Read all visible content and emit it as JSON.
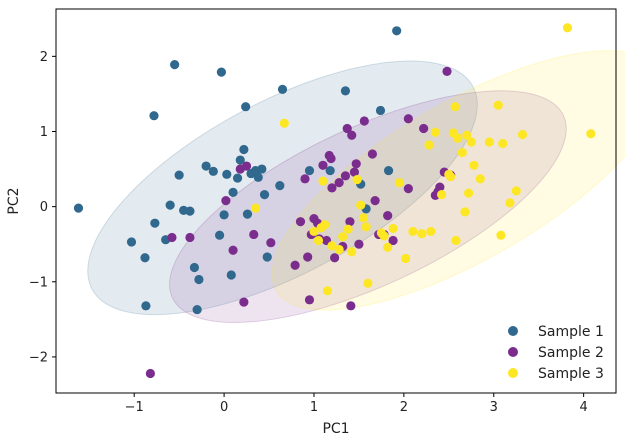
{
  "chart_data": {
    "type": "scatter",
    "xlabel": "PC1",
    "ylabel": "PC2",
    "xlim": [
      -1.87,
      4.36
    ],
    "ylim": [
      -2.48,
      2.63
    ],
    "x_ticks": [
      "−1",
      "0",
      "1",
      "2",
      "3",
      "4"
    ],
    "y_ticks": [
      "−2",
      "−1",
      "0",
      "1",
      "2"
    ],
    "grid": false,
    "legend_position": "lower-right",
    "series": [
      {
        "name": "Sample 1",
        "color": "#31688e",
        "ellipse": {
          "cx": 0.65,
          "cy": 0.25,
          "rx": 2.4,
          "ry": 1.15,
          "angle": 28
        },
        "points": [
          [
            -1.62,
            -0.02
          ],
          [
            -1.03,
            -0.47
          ],
          [
            -0.88,
            -0.68
          ],
          [
            -0.87,
            -1.32
          ],
          [
            -0.78,
            1.21
          ],
          [
            -0.77,
            -0.22
          ],
          [
            -0.65,
            -0.44
          ],
          [
            -0.6,
            0.02
          ],
          [
            -0.55,
            1.89
          ],
          [
            -0.5,
            0.42
          ],
          [
            -0.45,
            -0.05
          ],
          [
            -0.38,
            -0.06
          ],
          [
            -0.33,
            -0.81
          ],
          [
            -0.3,
            -1.37
          ],
          [
            -0.28,
            -0.97
          ],
          [
            -0.2,
            0.54
          ],
          [
            -0.12,
            0.47
          ],
          [
            -0.05,
            -0.38
          ],
          [
            -0.03,
            1.79
          ],
          [
            0.0,
            -0.11
          ],
          [
            0.03,
            0.43
          ],
          [
            0.08,
            -0.91
          ],
          [
            0.1,
            0.19
          ],
          [
            0.15,
            0.38
          ],
          [
            0.18,
            0.62
          ],
          [
            0.22,
            0.76
          ],
          [
            0.24,
            1.33
          ],
          [
            0.26,
            -0.1
          ],
          [
            0.3,
            0.44
          ],
          [
            0.35,
            0.48
          ],
          [
            0.38,
            0.39
          ],
          [
            0.42,
            0.5
          ],
          [
            0.45,
            0.16
          ],
          [
            0.48,
            -0.67
          ],
          [
            0.62,
            0.28
          ],
          [
            0.65,
            1.56
          ],
          [
            0.95,
            0.48
          ],
          [
            1.18,
            0.48
          ],
          [
            1.35,
            1.54
          ],
          [
            1.52,
            0.3
          ],
          [
            1.58,
            -0.03
          ],
          [
            1.74,
            1.28
          ],
          [
            1.83,
            0.48
          ],
          [
            1.92,
            2.34
          ]
        ]
      },
      {
        "name": "Sample 2",
        "color": "#7b2d8e",
        "ellipse": {
          "cx": 1.6,
          "cy": 0.0,
          "rx": 2.4,
          "ry": 1.05,
          "angle": 25
        },
        "points": [
          [
            -0.82,
            -2.22
          ],
          [
            -0.58,
            -0.41
          ],
          [
            -0.38,
            -0.41
          ],
          [
            0.02,
            0.08
          ],
          [
            0.1,
            -0.58
          ],
          [
            0.18,
            0.5
          ],
          [
            0.22,
            -1.27
          ],
          [
            0.25,
            0.54
          ],
          [
            0.33,
            -0.37
          ],
          [
            0.52,
            -0.48
          ],
          [
            0.79,
            -0.78
          ],
          [
            0.85,
            -0.2
          ],
          [
            0.9,
            0.37
          ],
          [
            0.93,
            -0.67
          ],
          [
            0.95,
            -1.24
          ],
          [
            0.97,
            -0.37
          ],
          [
            1.0,
            -0.16
          ],
          [
            1.04,
            -0.22
          ],
          [
            1.06,
            -0.43
          ],
          [
            1.1,
            0.55
          ],
          [
            1.14,
            -0.45
          ],
          [
            1.17,
            0.68
          ],
          [
            1.19,
            0.64
          ],
          [
            1.2,
            0.25
          ],
          [
            1.23,
            -0.68
          ],
          [
            1.28,
            0.32
          ],
          [
            1.32,
            -0.53
          ],
          [
            1.35,
            0.41
          ],
          [
            1.37,
            1.04
          ],
          [
            1.4,
            -0.2
          ],
          [
            1.42,
            0.95
          ],
          [
            1.45,
            0.46
          ],
          [
            1.47,
            0.57
          ],
          [
            1.5,
            -0.5
          ],
          [
            1.56,
            1.14
          ],
          [
            1.65,
            0.7
          ],
          [
            1.68,
            0.08
          ],
          [
            1.72,
            -0.37
          ],
          [
            1.78,
            -0.37
          ],
          [
            1.82,
            -0.12
          ],
          [
            1.88,
            -0.45
          ],
          [
            2.05,
            1.17
          ],
          [
            2.05,
            0.24
          ],
          [
            2.22,
            1.04
          ],
          [
            2.35,
            0.15
          ],
          [
            2.38,
            0.2
          ],
          [
            2.4,
            0.26
          ],
          [
            2.45,
            0.46
          ],
          [
            2.48,
            1.8
          ],
          [
            2.52,
            0.42
          ],
          [
            1.41,
            -1.32
          ]
        ]
      },
      {
        "name": "Sample 3",
        "color": "#fde725",
        "ellipse": {
          "cx": 2.7,
          "cy": 0.35,
          "rx": 2.45,
          "ry": 1.05,
          "angle": 30
        },
        "points": [
          [
            0.35,
            -0.02
          ],
          [
            0.67,
            1.11
          ],
          [
            1.0,
            -0.33
          ],
          [
            1.05,
            -0.45
          ],
          [
            1.08,
            -0.28
          ],
          [
            1.1,
            0.34
          ],
          [
            1.12,
            -0.24
          ],
          [
            1.15,
            -1.12
          ],
          [
            1.2,
            -0.52
          ],
          [
            1.28,
            -0.57
          ],
          [
            1.32,
            -0.4
          ],
          [
            1.38,
            -0.3
          ],
          [
            1.42,
            -0.6
          ],
          [
            1.48,
            0.36
          ],
          [
            1.52,
            0.02
          ],
          [
            1.55,
            -0.15
          ],
          [
            1.58,
            -0.27
          ],
          [
            1.6,
            -1.02
          ],
          [
            1.75,
            -0.35
          ],
          [
            1.78,
            -0.39
          ],
          [
            1.82,
            -0.54
          ],
          [
            1.88,
            -0.29
          ],
          [
            1.95,
            0.32
          ],
          [
            2.02,
            -0.69
          ],
          [
            2.1,
            -0.33
          ],
          [
            2.2,
            -0.36
          ],
          [
            2.28,
            0.82
          ],
          [
            2.3,
            -0.33
          ],
          [
            2.35,
            0.99
          ],
          [
            2.42,
            0.16
          ],
          [
            2.5,
            0.43
          ],
          [
            2.52,
            0.4
          ],
          [
            2.55,
            0.98
          ],
          [
            2.58,
            -0.45
          ],
          [
            2.6,
            0.91
          ],
          [
            2.65,
            0.72
          ],
          [
            2.68,
            -0.07
          ],
          [
            2.7,
            0.95
          ],
          [
            2.72,
            0.18
          ],
          [
            2.75,
            0.86
          ],
          [
            2.78,
            0.55
          ],
          [
            2.85,
            0.37
          ],
          [
            2.95,
            0.86
          ],
          [
            3.05,
            1.35
          ],
          [
            3.08,
            -0.38
          ],
          [
            3.1,
            0.84
          ],
          [
            3.18,
            0.05
          ],
          [
            3.25,
            0.21
          ],
          [
            3.32,
            0.96
          ],
          [
            3.82,
            2.38
          ],
          [
            4.08,
            0.97
          ],
          [
            2.57,
            1.33
          ]
        ]
      }
    ]
  }
}
